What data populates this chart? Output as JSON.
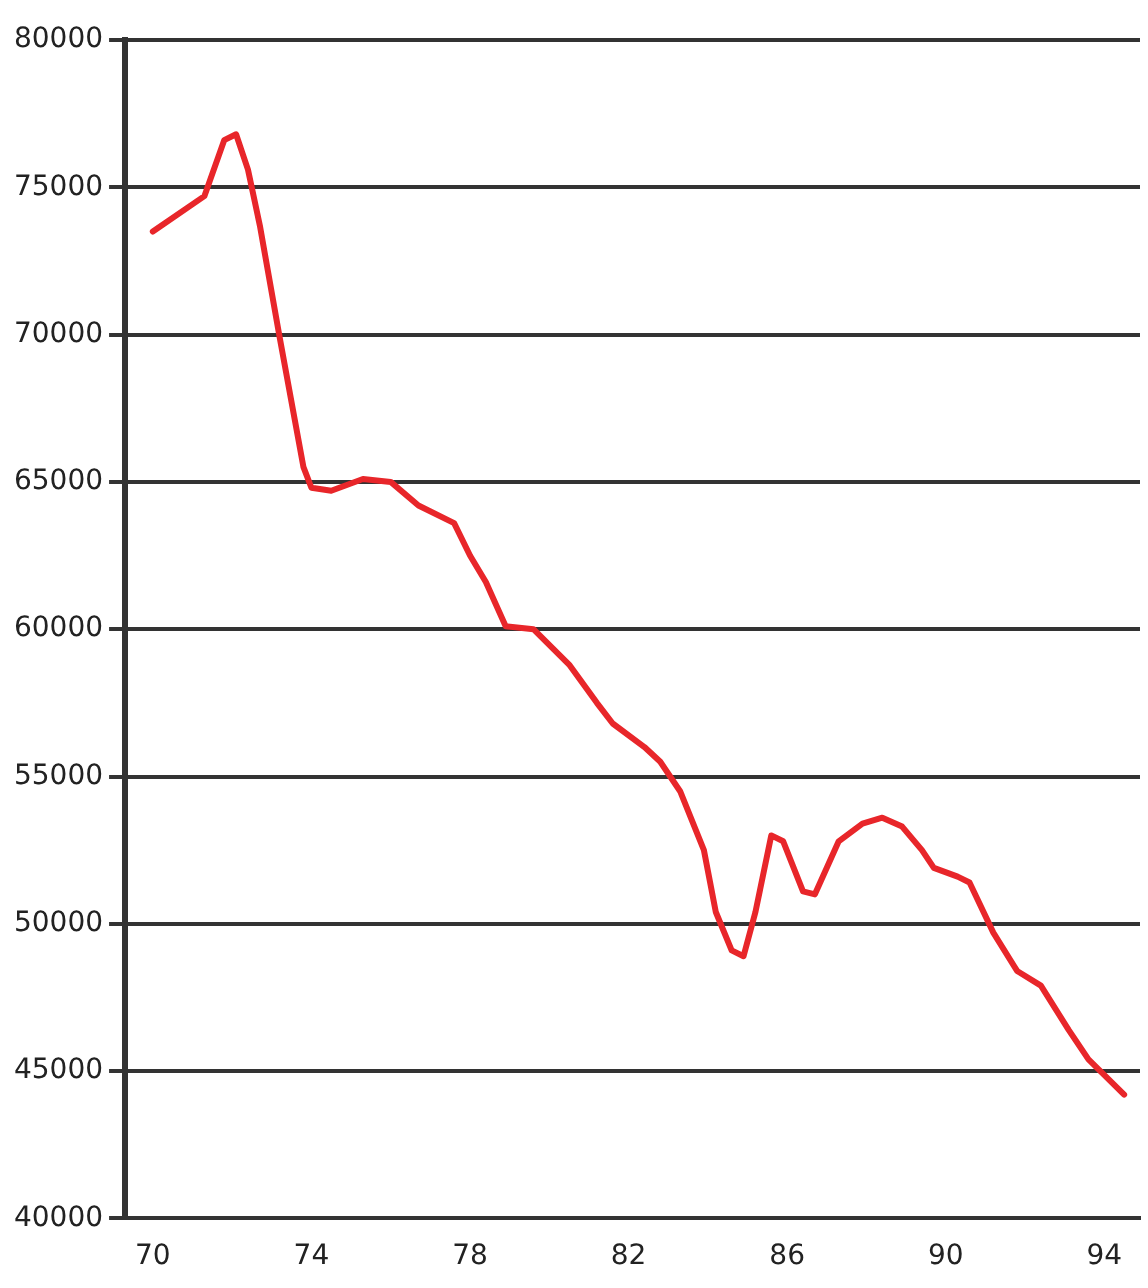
{
  "chart_data": {
    "type": "line",
    "x": [
      70,
      71.3,
      71.8,
      72.1,
      72.4,
      72.7,
      73.2,
      73.8,
      74,
      74.5,
      75.3,
      76,
      76.7,
      77.6,
      78,
      78.4,
      78.9,
      79.6,
      80.5,
      81.2,
      81.6,
      82.4,
      82.8,
      83.3,
      83.9,
      84.2,
      84.6,
      84.9,
      85.2,
      85.6,
      85.9,
      86.4,
      86.7,
      87.3,
      87.9,
      88.4,
      88.9,
      89.4,
      89.7,
      90.3,
      90.6,
      91.2,
      91.8,
      92.4,
      93.1,
      93.6,
      94.5
    ],
    "series": [
      {
        "color": "#e8262a",
        "values": [
          73500,
          74700,
          76600,
          76800,
          75600,
          73700,
          69900,
          65500,
          64800,
          64700,
          65100,
          65000,
          64200,
          63600,
          62500,
          61600,
          60100,
          60000,
          58800,
          57500,
          56800,
          56000,
          55500,
          54500,
          52500,
          50400,
          49100,
          48900,
          50400,
          53000,
          52800,
          51100,
          51000,
          52800,
          53400,
          53600,
          53300,
          52500,
          51900,
          51600,
          51400,
          49700,
          48400,
          47900,
          46400,
          45400,
          44200
        ]
      }
    ],
    "xlim": [
      69.3,
      94.9
    ],
    "xticks": [
      70,
      74,
      78,
      82,
      86,
      90,
      94
    ],
    "ylim": [
      40000,
      80000
    ],
    "yticks": [
      40000,
      45000,
      50000,
      55000,
      60000,
      65000,
      70000,
      75000,
      80000
    ],
    "grid": "y",
    "legend": false,
    "marker": "none",
    "line_style": "solid"
  }
}
